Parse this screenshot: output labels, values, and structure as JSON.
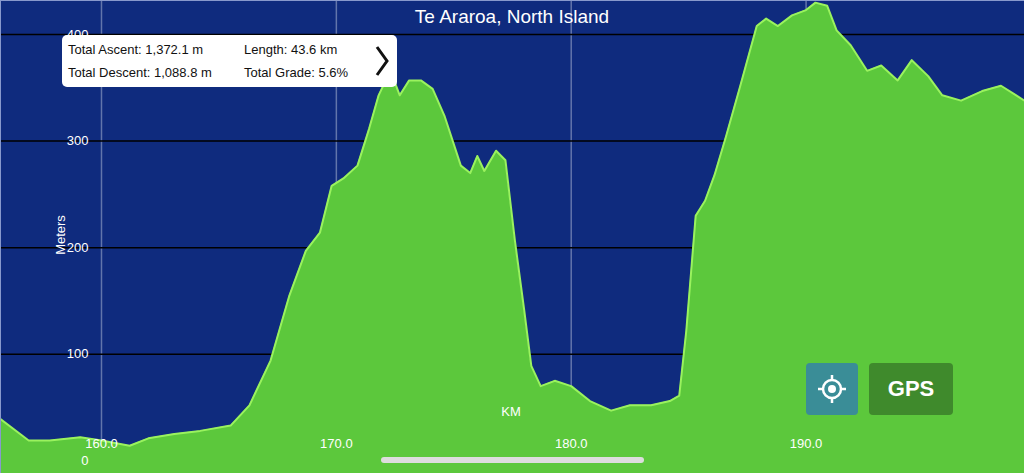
{
  "chart_data": {
    "type": "area",
    "title": "Te Araroa, North Island",
    "x_label": "KM",
    "y_label": "Meters",
    "color": "#5cc83c",
    "grid": true,
    "x": [
      155.7,
      156.9,
      157.8,
      159.1,
      160.0,
      161.2,
      162.0,
      163.1,
      164.2,
      165.5,
      166.3,
      167.2,
      168.0,
      168.7,
      169.3,
      169.8,
      170.3,
      170.9,
      171.4,
      171.8,
      172.3,
      172.7,
      173.1,
      173.6,
      174.1,
      174.6,
      175.3,
      175.7,
      176.0,
      176.3,
      176.8,
      177.2,
      177.6,
      178.0,
      178.3,
      178.7,
      179.3,
      180.0,
      180.8,
      181.7,
      182.5,
      183.4,
      184.2,
      184.6,
      184.9,
      185.3,
      185.7,
      186.1,
      186.6,
      187.2,
      187.9,
      188.3,
      188.8,
      189.4,
      190.0,
      190.4,
      190.9,
      191.3,
      191.9,
      192.6,
      193.2,
      193.9,
      194.5,
      195.2,
      195.8,
      196.6,
      197.5,
      198.3,
      199.3
    ],
    "values": [
      39,
      19,
      19,
      22,
      19,
      14,
      21,
      25,
      28,
      33,
      52,
      94,
      155,
      197,
      214,
      258,
      265,
      277,
      312,
      343,
      366,
      343,
      357,
      357,
      349,
      324,
      277,
      270,
      286,
      272,
      291,
      282,
      207,
      141,
      89,
      70,
      75,
      70,
      56,
      47,
      52,
      52,
      56,
      61,
      122,
      230,
      244,
      268,
      305,
      352,
      408,
      415,
      408,
      418,
      423,
      430,
      427,
      404,
      390,
      366,
      371,
      357,
      376,
      361,
      343,
      338,
      347,
      352,
      338
    ],
    "xlim": [
      155.7,
      199.3
    ],
    "ylim": [
      -12,
      432
    ],
    "xticks": [
      {
        "value": 160,
        "label": "160.0"
      },
      {
        "value": 170,
        "label": "170.0"
      },
      {
        "value": 180,
        "label": "180.0"
      },
      {
        "value": 190,
        "label": "190.0"
      }
    ],
    "yticks": [
      0,
      100,
      200,
      300,
      400
    ],
    "annotations": [
      "Total Ascent: 1,372.1 m",
      "Length: 43.6 km",
      "Total Descent: 1,088.8 m",
      "Total Grade: 5.6%",
      "GPS"
    ]
  }
}
